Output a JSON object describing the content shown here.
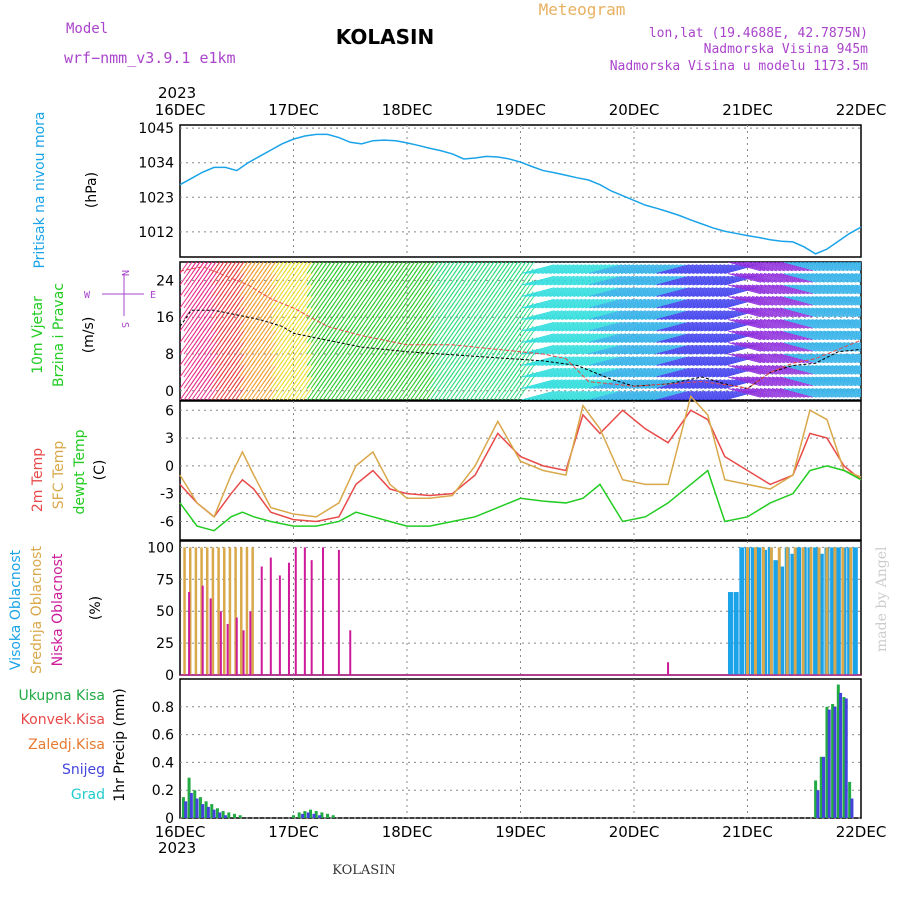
{
  "header": {
    "model_label": "Model",
    "model_name": "wrf−nmm_v3.9.1  e1km",
    "station": "KOLASIN",
    "product": "Meteogram",
    "lonlat": "lon,lat (19.4688E, 42.7875N)",
    "elevation": "Nadmorska Visina 945m",
    "model_elevation": "Nadmorska Visina u modelu 1173.5m",
    "year_top": "2023",
    "year_bottom": "2023",
    "footer_station": "KOLASIN",
    "credit": "made by Angel"
  },
  "colors": {
    "pressure": "#1aa3e8",
    "temp2m": "#e84a4a",
    "sfc": "#d9a84a",
    "dewpoint": "#22cc22",
    "high_cloud": "#1aa3e8",
    "mid_cloud": "#d9a84a",
    "low_cloud": "#cc1a99",
    "total_rain": "#22aa44",
    "snow": "#4444dd",
    "purple_text": "#aa44cc",
    "title_orange": "#e8b060"
  },
  "chart_data": [
    {
      "type": "line",
      "panel": "pressure",
      "ylabel_rot": "Pritisak na nivou mora",
      "unit": "(hPa)",
      "x_ticks": [
        "16DEC",
        "17DEC",
        "18DEC",
        "19DEC",
        "20DEC",
        "21DEC",
        "22DEC"
      ],
      "y_ticks": [
        1012,
        1023,
        1034,
        1045
      ],
      "ylim": [
        1004,
        1046
      ],
      "series": [
        {
          "x": [
            0,
            0.1,
            0.2,
            0.3,
            0.4,
            0.5,
            0.6,
            0.7,
            0.8,
            0.9,
            1.0,
            1.1,
            1.2,
            1.3,
            1.4,
            1.5,
            1.6,
            1.7,
            1.8,
            1.9,
            2.0,
            2.1,
            2.2,
            2.3,
            2.4,
            2.5,
            2.6,
            2.7,
            2.8,
            2.9,
            3.0,
            3.1,
            3.2,
            3.3,
            3.4,
            3.5,
            3.6,
            3.7,
            3.8,
            3.9,
            4.0,
            4.1,
            4.2,
            4.3,
            4.4,
            4.5,
            4.6,
            4.7,
            4.8,
            4.9,
            5.0,
            5.1,
            5.2,
            5.3,
            5.4,
            5.5,
            5.6,
            5.7,
            5.8,
            5.9,
            6.0
          ],
          "y": [
            1027,
            1029,
            1031,
            1032.5,
            1032.5,
            1031.5,
            1034,
            1036,
            1038,
            1040,
            1041.5,
            1042.5,
            1043,
            1043,
            1042,
            1040.5,
            1040,
            1041,
            1041.2,
            1041,
            1040.3,
            1039.5,
            1038.6,
            1037.8,
            1036.8,
            1035.2,
            1035.5,
            1036,
            1035.8,
            1035.2,
            1034.2,
            1032.8,
            1031.5,
            1030.8,
            1030,
            1029.2,
            1028.5,
            1027,
            1025,
            1023.5,
            1022,
            1020.5,
            1019.5,
            1018.4,
            1017.2,
            1015.8,
            1014.5,
            1013.2,
            1012.2,
            1011.5,
            1010.8,
            1010.2,
            1009.5,
            1009,
            1008.8,
            1007.2,
            1005,
            1006.5,
            1009,
            1011.5,
            1013.5
          ]
        }
      ]
    },
    {
      "type": "line",
      "panel": "wind",
      "ylabel_rot_1": "10m Vjetar",
      "ylabel_rot_2": "Brzina i Pravac",
      "unit": "(m/s)",
      "compass": {
        "n": "N",
        "s": "S",
        "w": "W",
        "e": "E"
      },
      "y_ticks": [
        0,
        8,
        16,
        24
      ],
      "ylim": [
        -2,
        28
      ],
      "series": [
        {
          "name": "speed",
          "x": [
            0,
            0.1,
            0.3,
            0.5,
            0.7,
            0.9,
            1.0,
            1.2,
            1.4,
            1.6,
            1.8,
            2.0,
            2.3,
            2.6,
            2.9,
            3.2,
            3.5,
            3.8,
            4.0,
            4.3,
            4.6,
            4.8,
            5.0,
            5.2,
            5.4,
            5.6,
            5.8,
            6.0
          ],
          "y": [
            14,
            17.5,
            17.5,
            16.5,
            15.5,
            14,
            12.5,
            11.5,
            10.5,
            9.5,
            9,
            8.5,
            8,
            7.5,
            7,
            6.5,
            5.5,
            2.5,
            1,
            1.5,
            3,
            1.5,
            0.5,
            4,
            5.5,
            6,
            8.5,
            9
          ]
        },
        {
          "name": "gust",
          "x": [
            0,
            0.2,
            0.4,
            0.6,
            0.8,
            1.0,
            1.3,
            1.6,
            2.0,
            2.4,
            2.8,
            3.2,
            3.4,
            3.6,
            3.8,
            4.0,
            4.3,
            4.6,
            4.9,
            5.0,
            5.2,
            5.4,
            5.6,
            5.8,
            6.0
          ],
          "y": [
            26,
            27,
            25,
            23,
            20,
            18,
            14,
            12,
            10,
            10,
            9,
            8,
            7,
            2,
            1.5,
            1,
            1.5,
            2,
            1,
            0.5,
            4,
            6,
            7,
            9,
            11
          ]
        }
      ]
    },
    {
      "type": "line",
      "panel": "temperature",
      "ylabel_rot_1": "2m Temp",
      "ylabel_rot_2": "SFC Temp",
      "ylabel_rot_3": "dewpt Temp",
      "unit": "(C)",
      "y_ticks": [
        -6,
        -3,
        0,
        3,
        6
      ],
      "ylim": [
        -8,
        7
      ],
      "series": [
        {
          "name": "2m Temp",
          "x": [
            0,
            0.15,
            0.3,
            0.45,
            0.55,
            0.65,
            0.8,
            1.0,
            1.2,
            1.4,
            1.55,
            1.7,
            1.85,
            2.0,
            2.2,
            2.4,
            2.6,
            2.8,
            3.0,
            3.2,
            3.4,
            3.55,
            3.7,
            3.9,
            4.1,
            4.3,
            4.5,
            4.65,
            4.8,
            5.0,
            5.2,
            5.4,
            5.55,
            5.7,
            5.85,
            6.0
          ],
          "y": [
            -2,
            -4,
            -5.5,
            -3,
            -1.5,
            -2.5,
            -5,
            -5.8,
            -6,
            -5.5,
            -2,
            -0.5,
            -2.5,
            -3,
            -3.2,
            -3,
            -1,
            3.5,
            1,
            0,
            -0.5,
            5.5,
            3.5,
            6,
            4,
            2.5,
            6,
            5,
            1,
            -0.5,
            -2,
            -1,
            3.5,
            3,
            0,
            -1.5
          ]
        },
        {
          "name": "SFC Temp",
          "x": [
            0,
            0.15,
            0.3,
            0.45,
            0.55,
            0.65,
            0.8,
            1.0,
            1.2,
            1.4,
            1.55,
            1.7,
            1.85,
            2.0,
            2.2,
            2.4,
            2.6,
            2.8,
            3.0,
            3.2,
            3.4,
            3.55,
            3.7,
            3.9,
            4.1,
            4.3,
            4.5,
            4.65,
            4.8,
            5.0,
            5.2,
            5.4,
            5.55,
            5.7,
            5.85,
            6.0
          ],
          "y": [
            -1,
            -4,
            -5.5,
            -1,
            1.5,
            -1,
            -4.5,
            -5.2,
            -5.5,
            -4,
            0,
            1.5,
            -2,
            -3.5,
            -3.5,
            -3.2,
            0,
            4.8,
            0.5,
            -0.5,
            -1,
            6.5,
            4,
            -1.5,
            -2,
            -2,
            7.5,
            5.5,
            -1.5,
            -2,
            -2.5,
            -1,
            6,
            5,
            -0.5,
            -1.2
          ]
        },
        {
          "name": "dewpt Temp",
          "x": [
            0,
            0.15,
            0.3,
            0.45,
            0.55,
            0.65,
            0.8,
            1.0,
            1.2,
            1.4,
            1.55,
            1.7,
            1.85,
            2.0,
            2.2,
            2.4,
            2.6,
            2.8,
            3.0,
            3.2,
            3.4,
            3.55,
            3.7,
            3.9,
            4.1,
            4.3,
            4.5,
            4.65,
            4.8,
            5.0,
            5.2,
            5.4,
            5.55,
            5.7,
            5.85,
            6.0
          ],
          "y": [
            -4,
            -6.5,
            -7,
            -5.5,
            -5,
            -5.5,
            -6,
            -6.5,
            -6.5,
            -6,
            -5,
            -5.5,
            -6,
            -6.5,
            -6.5,
            -6,
            -5.5,
            -4.5,
            -3.5,
            -3.8,
            -4,
            -3.5,
            -2,
            -6,
            -5.5,
            -4,
            -2,
            -0.5,
            -6,
            -5.5,
            -4,
            -3,
            -0.5,
            0,
            -0.5,
            -1.5
          ]
        }
      ]
    },
    {
      "type": "bar",
      "panel": "cloud",
      "ylabel_rot_1": "Visoka Oblacnost",
      "ylabel_rot_2": "Srednja Oblacnost",
      "ylabel_rot_3": "Niska Oblacnost",
      "unit": "(%)",
      "y_ticks": [
        0,
        25,
        50,
        75,
        100
      ],
      "ylim": [
        0,
        105
      ],
      "series": [
        {
          "name": "Srednja Oblacnost",
          "x": [
            0.04,
            0.09,
            0.14,
            0.19,
            0.24,
            0.29,
            0.34,
            0.39,
            0.44,
            0.49,
            0.54,
            0.59,
            0.64
          ],
          "y": [
            100,
            100,
            100,
            100,
            100,
            100,
            100,
            100,
            100,
            100,
            100,
            100,
            100
          ]
        },
        {
          "name": "Niska Oblacnost",
          "x": [
            0.08,
            0.2,
            0.27,
            0.36,
            0.42,
            0.5,
            0.56,
            0.62,
            0.72,
            0.8,
            0.88,
            0.96,
            1.02,
            1.1,
            1.16,
            1.26,
            1.4,
            1.5
          ],
          "y": [
            65,
            70,
            60,
            50,
            40,
            45,
            35,
            50,
            85,
            92,
            78,
            88,
            100,
            100,
            90,
            100,
            98,
            35
          ]
        },
        {
          "name": "Visoka Oblacnost",
          "x": [
            4.85,
            4.9,
            4.95,
            5.0,
            5.05,
            5.1,
            5.15,
            5.2,
            5.25,
            5.3,
            5.35,
            5.4,
            5.45,
            5.5,
            5.55,
            5.6,
            5.65,
            5.7,
            5.75,
            5.8,
            5.85,
            5.9,
            5.95
          ],
          "y": [
            65,
            65,
            100,
            100,
            100,
            100,
            98,
            100,
            90,
            85,
            100,
            95,
            100,
            100,
            100,
            100,
            95,
            100,
            100,
            100,
            100,
            100,
            100
          ]
        },
        {
          "name": "Srednja Oblacnost 2",
          "x": [
            5.0,
            5.07,
            5.14,
            5.21,
            5.28,
            5.35,
            5.42,
            5.49,
            5.56,
            5.63,
            5.7,
            5.77,
            5.84,
            5.91
          ],
          "y": [
            100,
            100,
            100,
            100,
            100,
            100,
            100,
            100,
            100,
            100,
            100,
            100,
            100,
            100
          ]
        },
        {
          "name": "Niska Oblacnost 2",
          "x": [
            4.3
          ],
          "y": [
            10
          ]
        }
      ]
    },
    {
      "type": "bar",
      "panel": "precip",
      "ylabel_rot": "1hr Precip (mm)",
      "legend": [
        "Ukupna Kisa",
        "Konvek.Kisa",
        "Zaledj.Kisa",
        "Snijeg",
        "Grad"
      ],
      "y_ticks": [
        0,
        0.2,
        0.4,
        0.6,
        0.8
      ],
      "ylim": [
        0,
        1.0
      ],
      "series": [
        {
          "name": "Ukupna Kisa",
          "x": [
            0.03,
            0.08,
            0.13,
            0.18,
            0.23,
            0.28,
            0.33,
            0.38,
            0.43,
            0.48,
            0.53,
            1.0,
            1.05,
            1.1,
            1.15,
            1.2,
            1.25,
            1.3,
            1.35,
            5.6,
            5.65,
            5.7,
            5.75,
            5.8,
            5.85,
            5.9
          ],
          "y": [
            0.15,
            0.29,
            0.2,
            0.15,
            0.12,
            0.1,
            0.07,
            0.05,
            0.04,
            0.03,
            0.02,
            0.02,
            0.04,
            0.05,
            0.06,
            0.05,
            0.04,
            0.03,
            0.02,
            0.27,
            0.44,
            0.8,
            0.82,
            0.96,
            0.87,
            0.26
          ]
        },
        {
          "name": "Snijeg",
          "x": [
            0.05,
            0.1,
            0.15,
            0.2,
            0.25,
            0.3,
            0.35,
            0.4,
            1.08,
            1.13,
            1.18,
            1.23,
            5.62,
            5.67,
            5.72,
            5.77,
            5.82,
            5.87,
            5.92
          ],
          "y": [
            0.12,
            0.18,
            0.14,
            0.1,
            0.08,
            0.06,
            0.04,
            0.02,
            0.03,
            0.04,
            0.03,
            0.02,
            0.2,
            0.44,
            0.78,
            0.8,
            0.9,
            0.86,
            0.14
          ]
        }
      ]
    }
  ]
}
